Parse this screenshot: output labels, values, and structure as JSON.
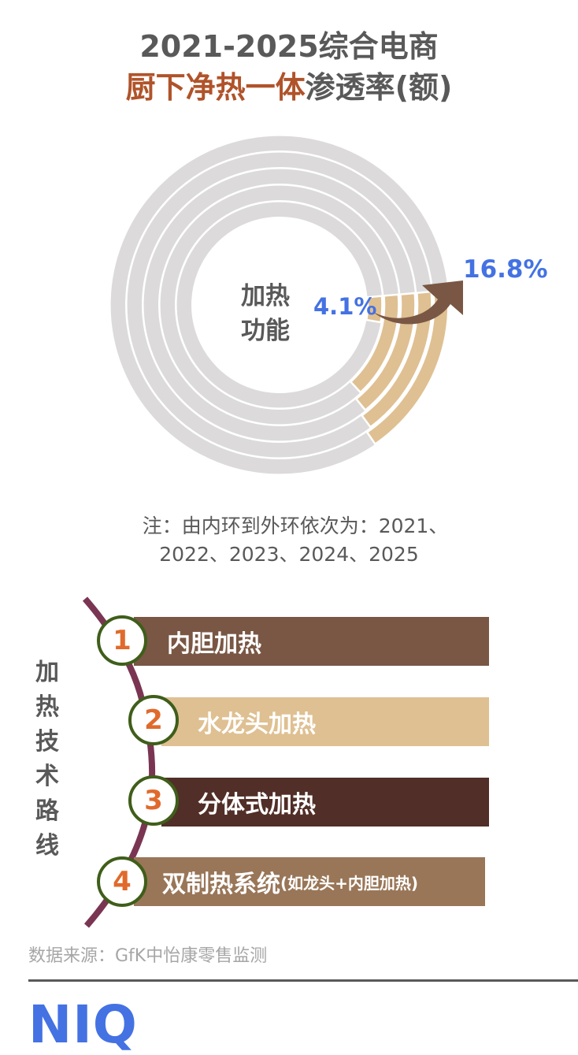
{
  "title": {
    "line1": "2021-2025综合电商",
    "line2_accent": "厨下净热一体",
    "line2_rest": "渗透率(额)"
  },
  "center_label": {
    "line1": "加热",
    "line2": "功能"
  },
  "labels": {
    "start_value": "4.1%",
    "end_value": "16.8%"
  },
  "note": {
    "line1": "注：由内环到外环依次为：2021、",
    "line2": "2022、2023、2024、2025"
  },
  "routes": {
    "vertical_label": [
      "加",
      "热",
      "技",
      "术",
      "路",
      "线"
    ],
    "items": [
      {
        "number": "1",
        "label": "内胆加热",
        "sub": "",
        "color": "#795744"
      },
      {
        "number": "2",
        "label": "水龙头加热",
        "sub": "",
        "color": "#DFC092"
      },
      {
        "number": "3",
        "label": "分体式加热",
        "sub": "",
        "color": "#512E27"
      },
      {
        "number": "4",
        "label": "双制热系统",
        "sub": "(如龙头+内胆加热)",
        "color": "#997658"
      }
    ]
  },
  "source": "数据来源：GfK中怡康零售监测",
  "logo": "NIQ",
  "colors": {
    "ring_bg": "#DCDADB",
    "ring_fill": "#DFC092",
    "arrow": "#795744",
    "value_blue": "#4472E3",
    "title_accent": "#B0532A",
    "route_line": "#7A3552",
    "badge_border": "#3F5E1A",
    "badge_number": "#E06A2C"
  },
  "chart_data": {
    "type": "pie",
    "subtype": "concentric-rings",
    "title": "2021-2025综合电商厨下净热一体渗透率(额)",
    "center_label": "加热功能",
    "series_order_note": "由内环到外环依次为：2021、2022、2023、2024、2025",
    "categories": [
      "2021",
      "2022",
      "2023",
      "2024",
      "2025"
    ],
    "values": [
      4.1,
      14.5,
      15.5,
      16.2,
      16.8
    ],
    "labeled_values": {
      "2021": 4.1,
      "2025": 16.8
    },
    "unit": "%",
    "annotation": "arrow from 4.1% to 16.8%"
  }
}
